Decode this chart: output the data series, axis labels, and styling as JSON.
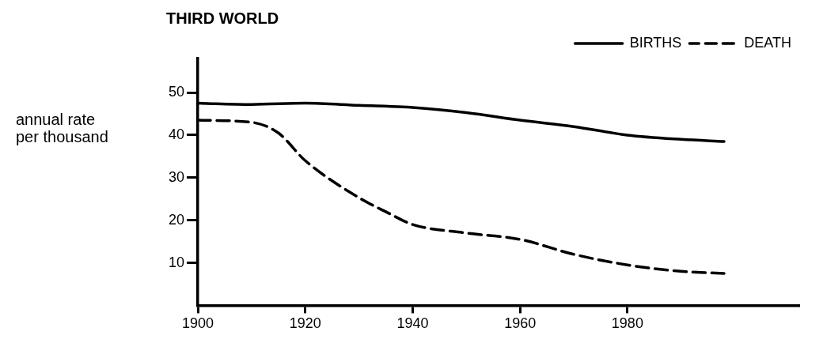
{
  "chart_data": {
    "type": "line",
    "title": "THIRD WORLD",
    "ylabel": "annual rate per thousand",
    "xlim": [
      1900,
      2012
    ],
    "xticks": [
      1900,
      1920,
      1940,
      1960,
      1980
    ],
    "ylim": [
      0,
      58
    ],
    "yticks": [
      10,
      20,
      30,
      40,
      50
    ],
    "grid": false,
    "legend": "top right",
    "marker": "none",
    "series": [
      {
        "name": "BIRTHS",
        "color": "#000000",
        "line_style": "solid",
        "x": [
          1900,
          1910,
          1920,
          1930,
          1940,
          1950,
          1960,
          1970,
          1980,
          1990,
          1998
        ],
        "values": [
          47.5,
          47.2,
          47.5,
          47,
          46.5,
          45.3,
          43.5,
          42,
          40,
          39,
          38.5
        ]
      },
      {
        "name": "DEATH",
        "color": "#000000",
        "line_style": "dashed",
        "x": [
          1900,
          1910,
          1915,
          1920,
          1930,
          1935,
          1940,
          1950,
          1960,
          1970,
          1980,
          1990,
          1998
        ],
        "values": [
          43.5,
          43,
          40.5,
          34,
          25.3,
          22,
          19,
          17,
          15.5,
          12,
          9.5,
          8,
          7.5
        ]
      }
    ]
  }
}
